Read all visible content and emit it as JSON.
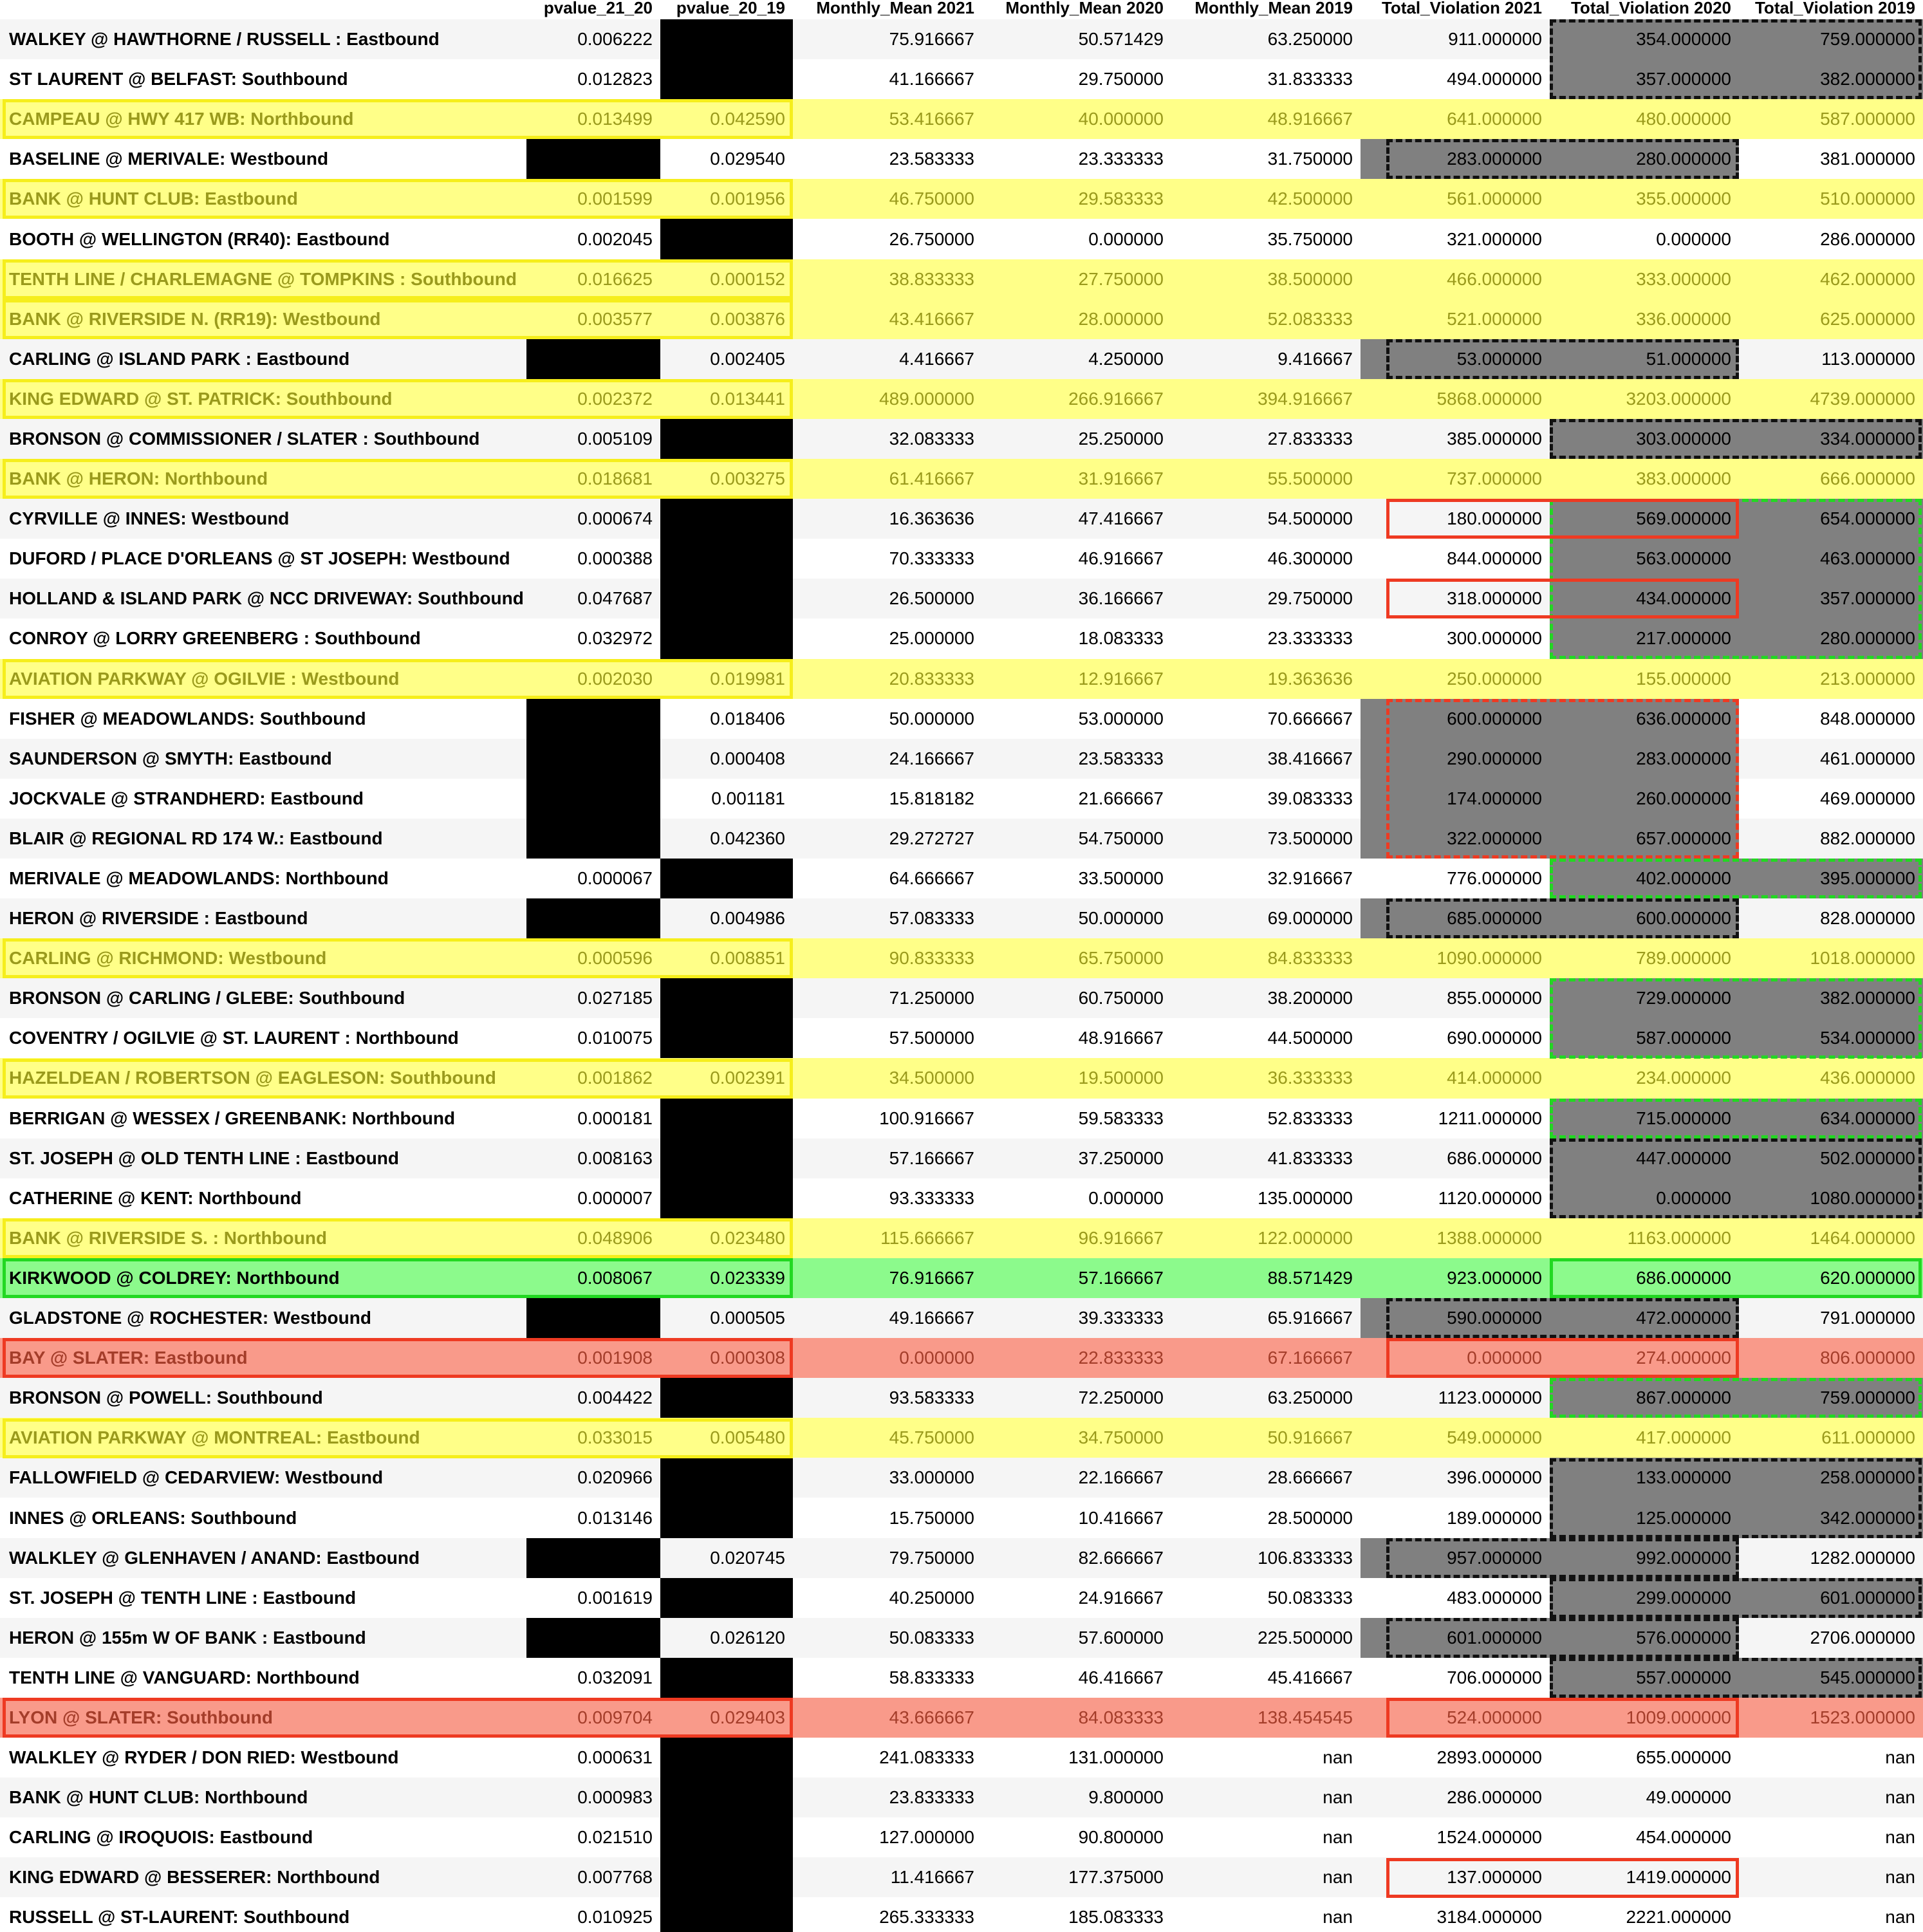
{
  "columns": [
    "",
    "pvalue_21_20",
    "pvalue_20_19",
    "Monthly_Mean 2021",
    "Monthly_Mean 2020",
    "Monthly_Mean 2019",
    "Total_Violation 2021",
    "Total_Violation 2020",
    "Total_Violation 2019"
  ],
  "rows": [
    {
      "name": "WALKEY @ HAWTHORNE / RUSSELL : Eastbound",
      "p21": "0.006222",
      "p20": "",
      "m21": "75.916667",
      "m20": "50.571429",
      "m19": "63.250000",
      "t21": "911.000000",
      "t20": "354.000000",
      "t19": "759.000000"
    },
    {
      "name": "ST LAURENT @ BELFAST: Southbound",
      "p21": "0.012823",
      "p20": "",
      "m21": "41.166667",
      "m20": "29.750000",
      "m19": "31.833333",
      "t21": "494.000000",
      "t20": "357.000000",
      "t19": "382.000000"
    },
    {
      "name": "CAMPEAU @ HWY 417 WB: Northbound",
      "p21": "0.013499",
      "p20": "0.042590",
      "m21": "53.416667",
      "m20": "40.000000",
      "m19": "48.916667",
      "t21": "641.000000",
      "t20": "480.000000",
      "t19": "587.000000"
    },
    {
      "name": "BASELINE @ MERIVALE: Westbound",
      "p21": "",
      "p20": "0.029540",
      "m21": "23.583333",
      "m20": "23.333333",
      "m19": "31.750000",
      "t21": "283.000000",
      "t20": "280.000000",
      "t19": "381.000000"
    },
    {
      "name": "BANK @ HUNT CLUB: Eastbound",
      "p21": "0.001599",
      "p20": "0.001956",
      "m21": "46.750000",
      "m20": "29.583333",
      "m19": "42.500000",
      "t21": "561.000000",
      "t20": "355.000000",
      "t19": "510.000000"
    },
    {
      "name": "BOOTH @ WELLINGTON (RR40): Eastbound",
      "p21": "0.002045",
      "p20": "",
      "m21": "26.750000",
      "m20": "0.000000",
      "m19": "35.750000",
      "t21": "321.000000",
      "t20": "0.000000",
      "t19": "286.000000"
    },
    {
      "name": "TENTH LINE / CHARLEMAGNE @ TOMPKINS : Southbound",
      "p21": "0.016625",
      "p20": "0.000152",
      "m21": "38.833333",
      "m20": "27.750000",
      "m19": "38.500000",
      "t21": "466.000000",
      "t20": "333.000000",
      "t19": "462.000000"
    },
    {
      "name": "BANK @ RIVERSIDE N. (RR19): Westbound",
      "p21": "0.003577",
      "p20": "0.003876",
      "m21": "43.416667",
      "m20": "28.000000",
      "m19": "52.083333",
      "t21": "521.000000",
      "t20": "336.000000",
      "t19": "625.000000"
    },
    {
      "name": "CARLING @ ISLAND PARK : Eastbound",
      "p21": "",
      "p20": "0.002405",
      "m21": "4.416667",
      "m20": "4.250000",
      "m19": "9.416667",
      "t21": "53.000000",
      "t20": "51.000000",
      "t19": "113.000000"
    },
    {
      "name": "KING EDWARD @ ST. PATRICK: Southbound",
      "p21": "0.002372",
      "p20": "0.013441",
      "m21": "489.000000",
      "m20": "266.916667",
      "m19": "394.916667",
      "t21": "5868.000000",
      "t20": "3203.000000",
      "t19": "4739.000000"
    },
    {
      "name": "BRONSON @ COMMISSIONER / SLATER : Southbound",
      "p21": "0.005109",
      "p20": "",
      "m21": "32.083333",
      "m20": "25.250000",
      "m19": "27.833333",
      "t21": "385.000000",
      "t20": "303.000000",
      "t19": "334.000000"
    },
    {
      "name": "BANK @ HERON: Northbound",
      "p21": "0.018681",
      "p20": "0.003275",
      "m21": "61.416667",
      "m20": "31.916667",
      "m19": "55.500000",
      "t21": "737.000000",
      "t20": "383.000000",
      "t19": "666.000000"
    },
    {
      "name": "CYRVILLE @ INNES: Westbound",
      "p21": "0.000674",
      "p20": "",
      "m21": "16.363636",
      "m20": "47.416667",
      "m19": "54.500000",
      "t21": "180.000000",
      "t20": "569.000000",
      "t19": "654.000000"
    },
    {
      "name": "DUFORD / PLACE D'ORLEANS @ ST JOSEPH: Westbound",
      "p21": "0.000388",
      "p20": "",
      "m21": "70.333333",
      "m20": "46.916667",
      "m19": "46.300000",
      "t21": "844.000000",
      "t20": "563.000000",
      "t19": "463.000000"
    },
    {
      "name": "HOLLAND & ISLAND PARK @ NCC DRIVEWAY: Southbound",
      "p21": "0.047687",
      "p20": "",
      "m21": "26.500000",
      "m20": "36.166667",
      "m19": "29.750000",
      "t21": "318.000000",
      "t20": "434.000000",
      "t19": "357.000000"
    },
    {
      "name": "CONROY @ LORRY GREENBERG : Southbound",
      "p21": "0.032972",
      "p20": "",
      "m21": "25.000000",
      "m20": "18.083333",
      "m19": "23.333333",
      "t21": "300.000000",
      "t20": "217.000000",
      "t19": "280.000000"
    },
    {
      "name": "AVIATION PARKWAY @ OGILVIE : Westbound",
      "p21": "0.002030",
      "p20": "0.019981",
      "m21": "20.833333",
      "m20": "12.916667",
      "m19": "19.363636",
      "t21": "250.000000",
      "t20": "155.000000",
      "t19": "213.000000"
    },
    {
      "name": "FISHER @ MEADOWLANDS: Southbound",
      "p21": "",
      "p20": "0.018406",
      "m21": "50.000000",
      "m20": "53.000000",
      "m19": "70.666667",
      "t21": "600.000000",
      "t20": "636.000000",
      "t19": "848.000000"
    },
    {
      "name": "SAUNDERSON @ SMYTH: Eastbound",
      "p21": "",
      "p20": "0.000408",
      "m21": "24.166667",
      "m20": "23.583333",
      "m19": "38.416667",
      "t21": "290.000000",
      "t20": "283.000000",
      "t19": "461.000000"
    },
    {
      "name": "JOCKVALE @ STRANDHERD: Eastbound",
      "p21": "",
      "p20": "0.001181",
      "m21": "15.818182",
      "m20": "21.666667",
      "m19": "39.083333",
      "t21": "174.000000",
      "t20": "260.000000",
      "t19": "469.000000"
    },
    {
      "name": "BLAIR @ REGIONAL RD 174 W.: Eastbound",
      "p21": "",
      "p20": "0.042360",
      "m21": "29.272727",
      "m20": "54.750000",
      "m19": "73.500000",
      "t21": "322.000000",
      "t20": "657.000000",
      "t19": "882.000000"
    },
    {
      "name": "MERIVALE @ MEADOWLANDS: Northbound",
      "p21": "0.000067",
      "p20": "",
      "m21": "64.666667",
      "m20": "33.500000",
      "m19": "32.916667",
      "t21": "776.000000",
      "t20": "402.000000",
      "t19": "395.000000"
    },
    {
      "name": "HERON @ RIVERSIDE : Eastbound",
      "p21": "",
      "p20": "0.004986",
      "m21": "57.083333",
      "m20": "50.000000",
      "m19": "69.000000",
      "t21": "685.000000",
      "t20": "600.000000",
      "t19": "828.000000"
    },
    {
      "name": "CARLING @ RICHMOND: Westbound",
      "p21": "0.000596",
      "p20": "0.008851",
      "m21": "90.833333",
      "m20": "65.750000",
      "m19": "84.833333",
      "t21": "1090.000000",
      "t20": "789.000000",
      "t19": "1018.000000"
    },
    {
      "name": "BRONSON @ CARLING / GLEBE: Southbound",
      "p21": "0.027185",
      "p20": "",
      "m21": "71.250000",
      "m20": "60.750000",
      "m19": "38.200000",
      "t21": "855.000000",
      "t20": "729.000000",
      "t19": "382.000000"
    },
    {
      "name": "COVENTRY / OGILVIE @ ST. LAURENT : Northbound",
      "p21": "0.010075",
      "p20": "",
      "m21": "57.500000",
      "m20": "48.916667",
      "m19": "44.500000",
      "t21": "690.000000",
      "t20": "587.000000",
      "t19": "534.000000"
    },
    {
      "name": "HAZELDEAN / ROBERTSON @ EAGLESON: Southbound",
      "p21": "0.001862",
      "p20": "0.002391",
      "m21": "34.500000",
      "m20": "19.500000",
      "m19": "36.333333",
      "t21": "414.000000",
      "t20": "234.000000",
      "t19": "436.000000"
    },
    {
      "name": "BERRIGAN @ WESSEX / GREENBANK: Northbound",
      "p21": "0.000181",
      "p20": "",
      "m21": "100.916667",
      "m20": "59.583333",
      "m19": "52.833333",
      "t21": "1211.000000",
      "t20": "715.000000",
      "t19": "634.000000"
    },
    {
      "name": "ST. JOSEPH @ OLD TENTH LINE : Eastbound",
      "p21": "0.008163",
      "p20": "",
      "m21": "57.166667",
      "m20": "37.250000",
      "m19": "41.833333",
      "t21": "686.000000",
      "t20": "447.000000",
      "t19": "502.000000"
    },
    {
      "name": "CATHERINE @ KENT: Northbound",
      "p21": "0.000007",
      "p20": "",
      "m21": "93.333333",
      "m20": "0.000000",
      "m19": "135.000000",
      "t21": "1120.000000",
      "t20": "0.000000",
      "t19": "1080.000000"
    },
    {
      "name": "BANK @ RIVERSIDE S. : Northbound",
      "p21": "0.048906",
      "p20": "0.023480",
      "m21": "115.666667",
      "m20": "96.916667",
      "m19": "122.000000",
      "t21": "1388.000000",
      "t20": "1163.000000",
      "t19": "1464.000000"
    },
    {
      "name": "KIRKWOOD @ COLDREY: Northbound",
      "p21": "0.008067",
      "p20": "0.023339",
      "m21": "76.916667",
      "m20": "57.166667",
      "m19": "88.571429",
      "t21": "923.000000",
      "t20": "686.000000",
      "t19": "620.000000"
    },
    {
      "name": "GLADSTONE @ ROCHESTER: Westbound",
      "p21": "",
      "p20": "0.000505",
      "m21": "49.166667",
      "m20": "39.333333",
      "m19": "65.916667",
      "t21": "590.000000",
      "t20": "472.000000",
      "t19": "791.000000"
    },
    {
      "name": "BAY @ SLATER: Eastbound",
      "p21": "0.001908",
      "p20": "0.000308",
      "m21": "0.000000",
      "m20": "22.833333",
      "m19": "67.166667",
      "t21": "0.000000",
      "t20": "274.000000",
      "t19": "806.000000"
    },
    {
      "name": "BRONSON @ POWELL: Southbound",
      "p21": "0.004422",
      "p20": "",
      "m21": "93.583333",
      "m20": "72.250000",
      "m19": "63.250000",
      "t21": "1123.000000",
      "t20": "867.000000",
      "t19": "759.000000"
    },
    {
      "name": "AVIATION PARKWAY @ MONTREAL: Eastbound",
      "p21": "0.033015",
      "p20": "0.005480",
      "m21": "45.750000",
      "m20": "34.750000",
      "m19": "50.916667",
      "t21": "549.000000",
      "t20": "417.000000",
      "t19": "611.000000"
    },
    {
      "name": "FALLOWFIELD @ CEDARVIEW: Westbound",
      "p21": "0.020966",
      "p20": "",
      "m21": "33.000000",
      "m20": "22.166667",
      "m19": "28.666667",
      "t21": "396.000000",
      "t20": "133.000000",
      "t19": "258.000000"
    },
    {
      "name": "INNES @ ORLEANS: Southbound",
      "p21": "0.013146",
      "p20": "",
      "m21": "15.750000",
      "m20": "10.416667",
      "m19": "28.500000",
      "t21": "189.000000",
      "t20": "125.000000",
      "t19": "342.000000"
    },
    {
      "name": "WALKLEY @ GLENHAVEN / ANAND: Eastbound",
      "p21": "",
      "p20": "0.020745",
      "m21": "79.750000",
      "m20": "82.666667",
      "m19": "106.833333",
      "t21": "957.000000",
      "t20": "992.000000",
      "t19": "1282.000000"
    },
    {
      "name": "ST. JOSEPH @ TENTH LINE : Eastbound",
      "p21": "0.001619",
      "p20": "",
      "m21": "40.250000",
      "m20": "24.916667",
      "m19": "50.083333",
      "t21": "483.000000",
      "t20": "299.000000",
      "t19": "601.000000"
    },
    {
      "name": "HERON @ 155m W OF BANK : Eastbound",
      "p21": "",
      "p20": "0.026120",
      "m21": "50.083333",
      "m20": "57.600000",
      "m19": "225.500000",
      "t21": "601.000000",
      "t20": "576.000000",
      "t19": "2706.000000"
    },
    {
      "name": "TENTH LINE @ VANGUARD: Northbound",
      "p21": "0.032091",
      "p20": "",
      "m21": "58.833333",
      "m20": "46.416667",
      "m19": "45.416667",
      "t21": "706.000000",
      "t20": "557.000000",
      "t19": "545.000000"
    },
    {
      "name": "LYON @ SLATER: Southbound",
      "p21": "0.009704",
      "p20": "0.029403",
      "m21": "43.666667",
      "m20": "84.083333",
      "m19": "138.454545",
      "t21": "524.000000",
      "t20": "1009.000000",
      "t19": "1523.000000"
    },
    {
      "name": "WALKLEY @ RYDER / DON RIED: Westbound",
      "p21": "0.000631",
      "p20": "",
      "m21": "241.083333",
      "m20": "131.000000",
      "m19": "nan",
      "t21": "2893.000000",
      "t20": "655.000000",
      "t19": "nan"
    },
    {
      "name": "BANK @ HUNT CLUB: Northbound",
      "p21": "0.000983",
      "p20": "",
      "m21": "23.833333",
      "m20": "9.800000",
      "m19": "nan",
      "t21": "286.000000",
      "t20": "49.000000",
      "t19": "nan"
    },
    {
      "name": "CARLING @ IROQUOIS: Eastbound",
      "p21": "0.021510",
      "p20": "",
      "m21": "127.000000",
      "m20": "90.800000",
      "m19": "nan",
      "t21": "1524.000000",
      "t20": "454.000000",
      "t19": "nan"
    },
    {
      "name": "KING EDWARD @ BESSERER: Northbound",
      "p21": "0.007768",
      "p20": "",
      "m21": "11.416667",
      "m20": "177.375000",
      "m19": "nan",
      "t21": "137.000000",
      "t20": "1419.000000",
      "t19": "nan"
    },
    {
      "name": "RUSSELL @ ST-LAURENT: Southbound",
      "p21": "0.010925",
      "p20": "",
      "m21": "265.333333",
      "m20": "185.083333",
      "m19": "nan",
      "t21": "3184.000000",
      "t20": "2221.000000",
      "t19": "nan"
    }
  ],
  "row_highlight": {
    "2": "yellow",
    "4": "yellow",
    "6": "yellow",
    "7": "yellow",
    "9": "yellow",
    "11": "yellow",
    "16": "yellow",
    "23": "yellow",
    "26": "yellow",
    "30": "yellow",
    "35": "yellow",
    "31": "green",
    "33": "red",
    "42": "red"
  },
  "gray_cells": {
    "0": [
      "t20",
      "t19"
    ],
    "1": [
      "t20",
      "t19"
    ],
    "3": [
      "t21",
      "t20"
    ],
    "8": [
      "t21",
      "t20"
    ],
    "10": [
      "t20",
      "t19"
    ],
    "12": [
      "t20",
      "t19"
    ],
    "13": [
      "t20",
      "t19"
    ],
    "14": [
      "t20",
      "t19"
    ],
    "15": [
      "t20",
      "t19"
    ],
    "17": [
      "t21",
      "t20"
    ],
    "18": [
      "t21",
      "t20"
    ],
    "19": [
      "t21",
      "t20"
    ],
    "20": [
      "t21",
      "t20"
    ],
    "21": [
      "t20",
      "t19"
    ],
    "22": [
      "t21",
      "t20"
    ],
    "24": [
      "t20",
      "t19"
    ],
    "25": [
      "t20",
      "t19"
    ],
    "27": [
      "t20",
      "t19"
    ],
    "28": [
      "t20",
      "t19"
    ],
    "29": [
      "t20",
      "t19"
    ],
    "32": [
      "t21",
      "t20"
    ],
    "34": [
      "t20",
      "t19"
    ],
    "36": [
      "t20",
      "t19"
    ],
    "37": [
      "t20",
      "t19"
    ],
    "38": [
      "t21",
      "t20"
    ],
    "39": [
      "t20",
      "t19"
    ],
    "40": [
      "t21",
      "t20"
    ],
    "41": [
      "t20",
      "t19"
    ]
  },
  "colors": {
    "black_mask": "#000000",
    "gray_cell": "#808080",
    "yellow_fill": "#ffff88",
    "yellow_border": "#f5ee1c",
    "green_fill": "#8cfa8c",
    "green_border": "#22d822",
    "red_fill": "#f99a8a",
    "red_border": "#ee3a22",
    "dash_black": "#111111"
  }
}
